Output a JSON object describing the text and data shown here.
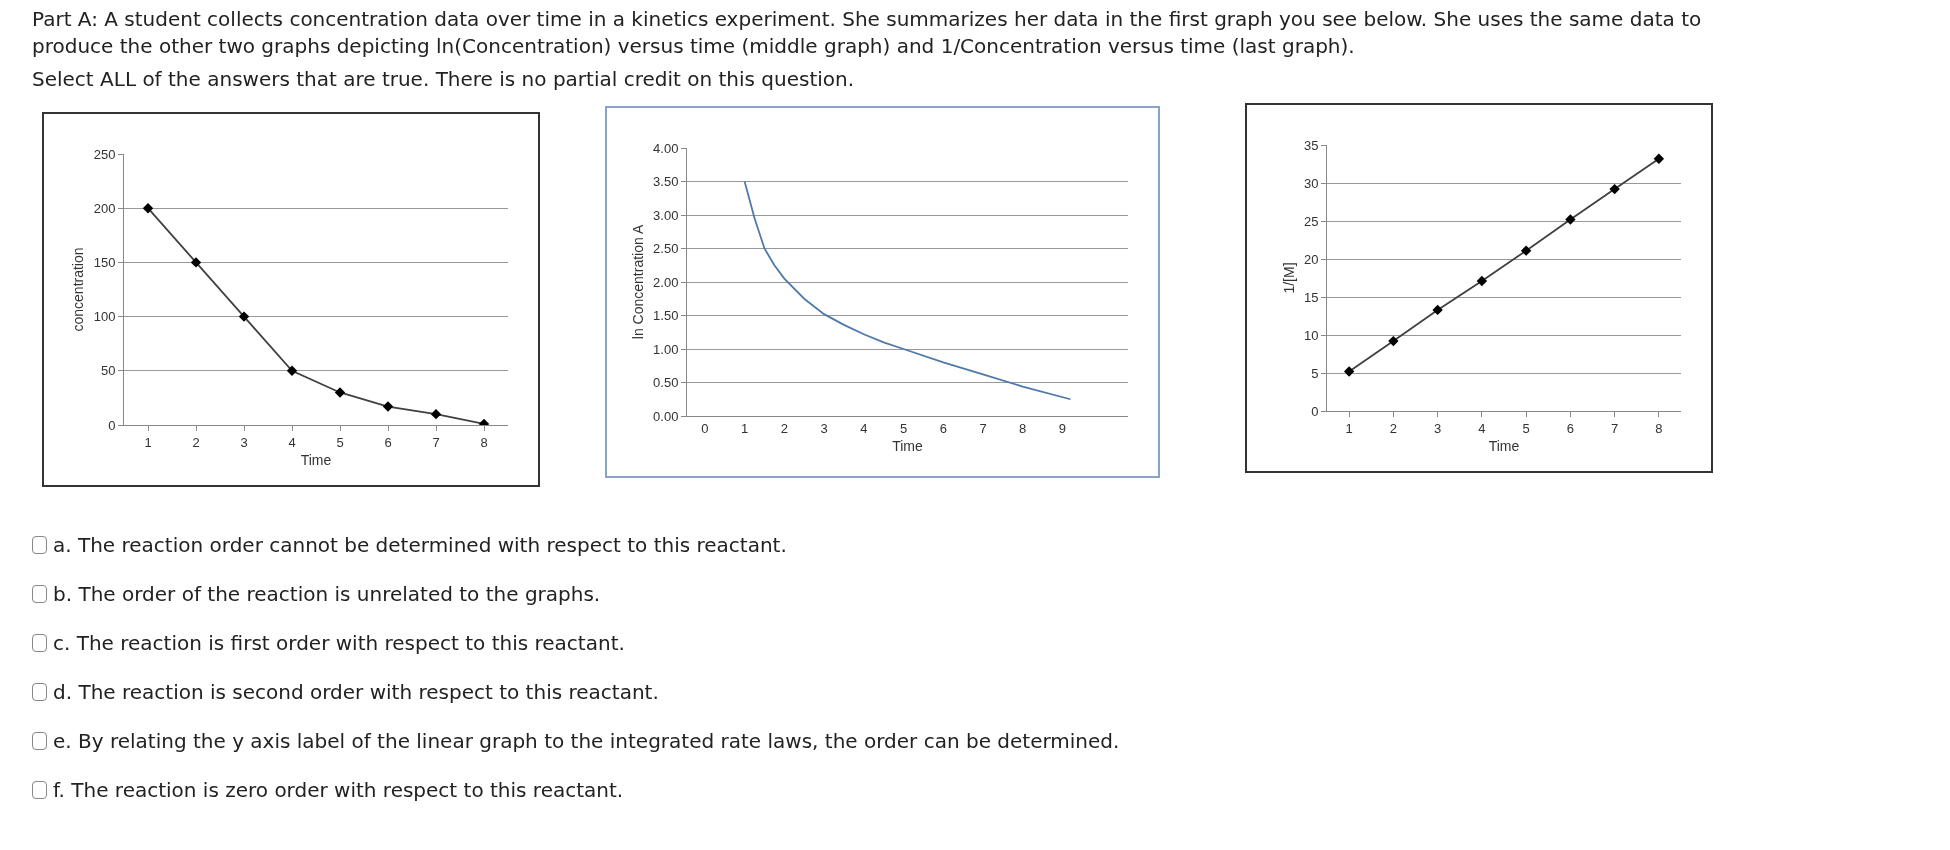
{
  "chart_data": [
    {
      "type": "other",
      "title": "Part A: A student collects concentration data over time in a kinetics experiment. She summarizes her data in the first graph you see below. She uses the same data to produce the other two graphs depicting ln(Concentration) versus time (middle graph) and 1/Concentration versus time (last graph).",
      "annotations": [
        "Select ALL of the answers that are true. There is no partial credit on this question."
      ]
    },
    {
      "type": "line",
      "xlabel": "Time",
      "ylabel": "concentration",
      "categories": [
        "1",
        "2",
        "3",
        "4",
        "5",
        "6",
        "7",
        "8"
      ],
      "values": [
        200,
        150,
        100,
        50,
        30,
        17,
        10,
        1
      ],
      "color": "#404040",
      "ylim": [
        0,
        250
      ],
      "yticks": [
        0,
        50,
        100,
        150,
        200,
        250
      ],
      "grid": "y",
      "marker": "diamond",
      "line_style": "solid"
    },
    {
      "type": "line",
      "xlabel": "Time",
      "ylabel": "ln Concentration A",
      "x": [
        1,
        1.25,
        1.5,
        1.75,
        2,
        2.5,
        3,
        3.5,
        4,
        4.5,
        5,
        6,
        7,
        8,
        9.2
      ],
      "values": [
        3.5,
        2.95,
        2.5,
        2.25,
        2.05,
        1.75,
        1.52,
        1.36,
        1.22,
        1.1,
        1.0,
        0.8,
        0.62,
        0.44,
        0.25
      ],
      "color": "#4f79ab",
      "xlim": [
        -0.45,
        10.65
      ],
      "xticks": [
        0,
        1,
        2,
        3,
        4,
        5,
        6,
        7,
        8,
        9
      ],
      "ylim": [
        0,
        4
      ],
      "yticks": [
        {
          "value": 0,
          "label": "0.00"
        },
        {
          "value": 0.5,
          "label": "0.50"
        },
        {
          "value": 1,
          "label": "1.00"
        },
        {
          "value": 1.5,
          "label": "1.50"
        },
        {
          "value": 2,
          "label": "2.00"
        },
        {
          "value": 2.5,
          "label": "2.50"
        },
        {
          "value": 3,
          "label": "3.00"
        },
        {
          "value": 3.5,
          "label": "3.50"
        },
        {
          "value": 4,
          "label": "4.00"
        }
      ],
      "grid": "y",
      "marker": "none",
      "line_style": "solid"
    },
    {
      "type": "line",
      "xlabel": "Time",
      "ylabel": "1/[M]",
      "categories": [
        "1",
        "2",
        "3",
        "4",
        "5",
        "6",
        "7",
        "8"
      ],
      "values": [
        5.2,
        9.2,
        13.3,
        17.1,
        21.1,
        25.2,
        29.2,
        33.2
      ],
      "color": "#404040",
      "ylim": [
        0,
        35
      ],
      "yticks": [
        0,
        5,
        10,
        15,
        20,
        25,
        30,
        35
      ],
      "grid": "y",
      "marker": "diamond",
      "line_style": "solid"
    },
    {
      "type": "other",
      "annotations": [
        "a. The reaction order cannot be determined with respect to this reactant.",
        "b. The order of the reaction is unrelated to the graphs.",
        "c. The reaction is first order with respect to this reactant.",
        "d. The reaction is second order with respect to this reactant.",
        "e. By relating the y axis label of the linear graph to the integrated rate laws, the order can be determined.",
        "f. The reaction is zero order with respect to this reactant."
      ]
    }
  ]
}
